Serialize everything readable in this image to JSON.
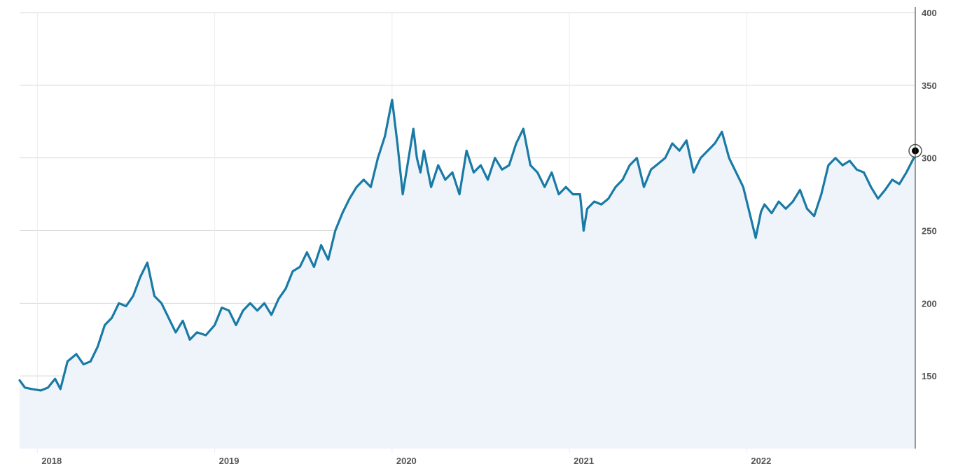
{
  "chart_data": {
    "type": "area",
    "title": "",
    "xlabel": "",
    "ylabel": "",
    "x_tick_labels": [
      "2018",
      "2019",
      "2020",
      "2021",
      "2022"
    ],
    "x_tick_years": [
      2018,
      2019,
      2020,
      2021,
      2022
    ],
    "xlim": [
      2017.9,
      2022.95
    ],
    "y_tick_labels": [
      "150",
      "200",
      "250",
      "300",
      "350",
      "400"
    ],
    "y_tick_values": [
      150,
      200,
      250,
      300,
      350,
      400
    ],
    "ylim": [
      100,
      400
    ],
    "grid": true,
    "legend": "none",
    "line_color": "#1a7aa6",
    "fill_color": "#eef4fa",
    "series": [
      {
        "x": [
          2017.9,
          2017.93,
          2017.97,
          2018.02,
          2018.06,
          2018.1,
          2018.13,
          2018.17,
          2018.22,
          2018.26,
          2018.3,
          2018.34,
          2018.38,
          2018.42,
          2018.46,
          2018.5,
          2018.54,
          2018.58,
          2018.62,
          2018.66,
          2018.7,
          2018.74,
          2018.78,
          2018.82,
          2018.86,
          2018.9,
          2018.95,
          2019.0,
          2019.04,
          2019.08,
          2019.12,
          2019.16,
          2019.2,
          2019.24,
          2019.28,
          2019.32,
          2019.36,
          2019.4,
          2019.44,
          2019.48,
          2019.52,
          2019.56,
          2019.6,
          2019.64,
          2019.68,
          2019.72,
          2019.76,
          2019.8,
          2019.84,
          2019.88,
          2019.92,
          2019.96,
          2020.0,
          2020.03,
          2020.06,
          2020.1,
          2020.12,
          2020.14,
          2020.16,
          2020.18,
          2020.22,
          2020.26,
          2020.3,
          2020.34,
          2020.38,
          2020.42,
          2020.46,
          2020.5,
          2020.54,
          2020.58,
          2020.62,
          2020.66,
          2020.7,
          2020.74,
          2020.78,
          2020.82,
          2020.86,
          2020.9,
          2020.94,
          2020.98,
          2021.02,
          2021.06,
          2021.08,
          2021.1,
          2021.14,
          2021.18,
          2021.22,
          2021.26,
          2021.3,
          2021.34,
          2021.38,
          2021.42,
          2021.46,
          2021.5,
          2021.54,
          2021.58,
          2021.62,
          2021.66,
          2021.7,
          2021.74,
          2021.78,
          2021.82,
          2021.86,
          2021.9,
          2021.94,
          2021.98,
          2022.02,
          2022.05,
          2022.08,
          2022.1,
          2022.14,
          2022.18,
          2022.22,
          2022.26,
          2022.3,
          2022.34,
          2022.38,
          2022.42,
          2022.46,
          2022.5,
          2022.54,
          2022.58,
          2022.62,
          2022.66,
          2022.7,
          2022.74,
          2022.78,
          2022.82,
          2022.86,
          2022.9,
          2022.95
        ],
        "values": [
          147,
          142,
          141,
          140,
          142,
          148,
          141,
          160,
          165,
          158,
          160,
          170,
          185,
          190,
          200,
          198,
          205,
          218,
          228,
          205,
          200,
          190,
          180,
          188,
          175,
          180,
          178,
          185,
          197,
          195,
          185,
          195,
          200,
          195,
          200,
          192,
          203,
          210,
          222,
          225,
          235,
          225,
          240,
          230,
          250,
          262,
          272,
          280,
          285,
          280,
          300,
          315,
          340,
          310,
          275,
          305,
          320,
          300,
          290,
          305,
          280,
          295,
          285,
          290,
          275,
          305,
          290,
          295,
          285,
          300,
          292,
          295,
          310,
          320,
          295,
          290,
          280,
          290,
          275,
          280,
          275,
          275,
          250,
          265,
          270,
          268,
          272,
          280,
          285,
          295,
          300,
          280,
          292,
          296,
          300,
          310,
          305,
          312,
          290,
          300,
          305,
          310,
          318,
          300,
          290,
          280,
          260,
          245,
          263,
          268,
          262,
          270,
          265,
          270,
          278,
          265,
          260,
          275,
          295,
          300,
          295,
          298,
          292,
          290,
          280,
          272,
          278,
          285,
          282,
          290,
          302
        ]
      }
    ]
  }
}
